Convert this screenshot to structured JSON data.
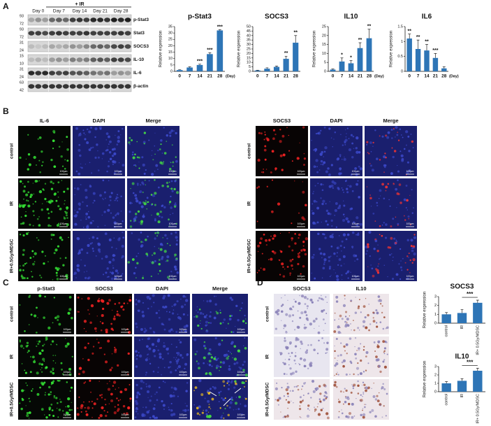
{
  "panel_labels": [
    "A",
    "B",
    "C",
    "D"
  ],
  "blot": {
    "treatment": "+ IR",
    "days": [
      "Day 0",
      "Day 7",
      "Day 14",
      "Day 21",
      "Day 28"
    ],
    "proteins": [
      "p-Stat3",
      "Stat3",
      "SOCS3",
      "IL-10",
      "IL-6",
      "β-actin"
    ],
    "markers": [
      [
        "93",
        "72"
      ],
      [
        "93",
        "72"
      ],
      [
        "31",
        "24"
      ],
      [
        "15",
        "10"
      ],
      [
        "31",
        "24"
      ],
      [
        "63",
        "42"
      ]
    ]
  },
  "scale_bar": "100μm",
  "panel_b": {
    "left": {
      "columns": [
        "IL-6",
        "DAPI",
        "Merge"
      ]
    },
    "right": {
      "columns": [
        "SOCS3",
        "DAPI",
        "Merge"
      ]
    },
    "rows": [
      "control",
      "IR",
      "IR+0.5Gy/MDSC"
    ]
  },
  "panel_c": {
    "columns": [
      "p-Stat3",
      "SOCS3",
      "DAPI",
      "Merge"
    ],
    "rows": [
      "control",
      "IR",
      "IR+0.5Gy/MDSC"
    ]
  },
  "panel_d": {
    "columns": [
      "SOCS3",
      "IL10"
    ],
    "rows": [
      "control",
      "IR",
      "IR+0.5Gy/MDSC"
    ]
  },
  "chart_data": [
    {
      "type": "bar",
      "title": "p-Stat3",
      "ylabel": "Relative expression",
      "xlabel": "(Day)",
      "categories": [
        "0",
        "7",
        "14",
        "21",
        "28"
      ],
      "values": [
        1,
        3,
        5,
        13.5,
        32
      ],
      "errors": [
        0.3,
        0.5,
        0.6,
        1,
        0.5
      ],
      "color": "#2e75b6",
      "ylim": [
        0,
        35
      ],
      "yticks": [
        0,
        5,
        10,
        15,
        20,
        25,
        30,
        35
      ],
      "annotations": [
        {
          "x": "14",
          "text": "***"
        },
        {
          "x": "21",
          "text": "***"
        },
        {
          "x": "28",
          "text": "***"
        }
      ]
    },
    {
      "type": "bar",
      "title": "SOCS3",
      "ylabel": "Relative expression",
      "categories": [
        "0",
        "7",
        "14",
        "21",
        "28"
      ],
      "values": [
        1,
        3,
        5,
        14,
        32
      ],
      "errors": [
        0.3,
        1,
        1,
        3,
        8
      ],
      "color": "#2e75b6",
      "ylim": [
        0,
        50
      ],
      "yticks": [
        0,
        5,
        10,
        15,
        20,
        25,
        30,
        35,
        40,
        45,
        50
      ],
      "annotations": [
        {
          "x": "21",
          "text": "**"
        },
        {
          "x": "28",
          "text": "**"
        }
      ]
    },
    {
      "type": "bar",
      "title": "IL10",
      "ylabel": "Relative expression",
      "xlabel": "(Day)",
      "categories": [
        "0",
        "7",
        "14",
        "21",
        "28"
      ],
      "values": [
        1,
        5.5,
        4.5,
        13,
        18.5
      ],
      "errors": [
        0.3,
        2,
        1.5,
        3,
        5
      ],
      "color": "#2e75b6",
      "ylim": [
        0,
        25
      ],
      "yticks": [
        0,
        5,
        10,
        15,
        20,
        25
      ],
      "annotations": [
        {
          "x": "7",
          "text": "*"
        },
        {
          "x": "14",
          "text": "*"
        },
        {
          "x": "21",
          "text": "**"
        },
        {
          "x": "28",
          "text": "**"
        }
      ]
    },
    {
      "type": "bar",
      "title": "IL6",
      "ylabel": "Relative expression",
      "xlabel": "(Day)",
      "categories": [
        "0",
        "7",
        "14",
        "21",
        "28"
      ],
      "values": [
        1.1,
        0.75,
        0.7,
        0.45,
        0.1
      ],
      "errors": [
        0.15,
        0.3,
        0.2,
        0.15,
        0.05
      ],
      "color": "#2e75b6",
      "ylim": [
        0,
        1.5
      ],
      "yticks": [
        0,
        0.5,
        1,
        1.5
      ],
      "annotations": [
        {
          "x": "0",
          "text": "**"
        },
        {
          "x": "7",
          "text": "**"
        },
        {
          "x": "14",
          "text": "**"
        },
        {
          "x": "21",
          "text": "***"
        }
      ]
    },
    {
      "type": "bar",
      "title": "SOCS3",
      "ylabel": "Relative expression",
      "categories": [
        "control",
        "IR",
        "IR+ 0.5Gy/MDSC"
      ],
      "values": [
        1,
        1.15,
        2.3
      ],
      "errors": [
        0.2,
        0.4,
        0.3
      ],
      "color": "#2e75b6",
      "ylim": [
        0,
        3
      ],
      "yticks": [
        0,
        1,
        2,
        3
      ],
      "annotations": [
        {
          "between": [
            "IR",
            "IR+ 0.5Gy/MDSC"
          ],
          "text": "***"
        }
      ]
    },
    {
      "type": "bar",
      "title": "IL10",
      "ylabel": "Relative expression",
      "categories": [
        "control",
        "IR",
        "IR+ 0.5Gy/MDSC"
      ],
      "values": [
        1,
        1.3,
        2.5
      ],
      "errors": [
        0.2,
        0.25,
        0.3
      ],
      "color": "#2e75b6",
      "ylim": [
        0,
        3
      ],
      "yticks": [
        0,
        1,
        2,
        3
      ],
      "annotations": [
        {
          "between": [
            "IR",
            "IR+ 0.5Gy/MDSC"
          ],
          "text": "***"
        }
      ]
    }
  ]
}
